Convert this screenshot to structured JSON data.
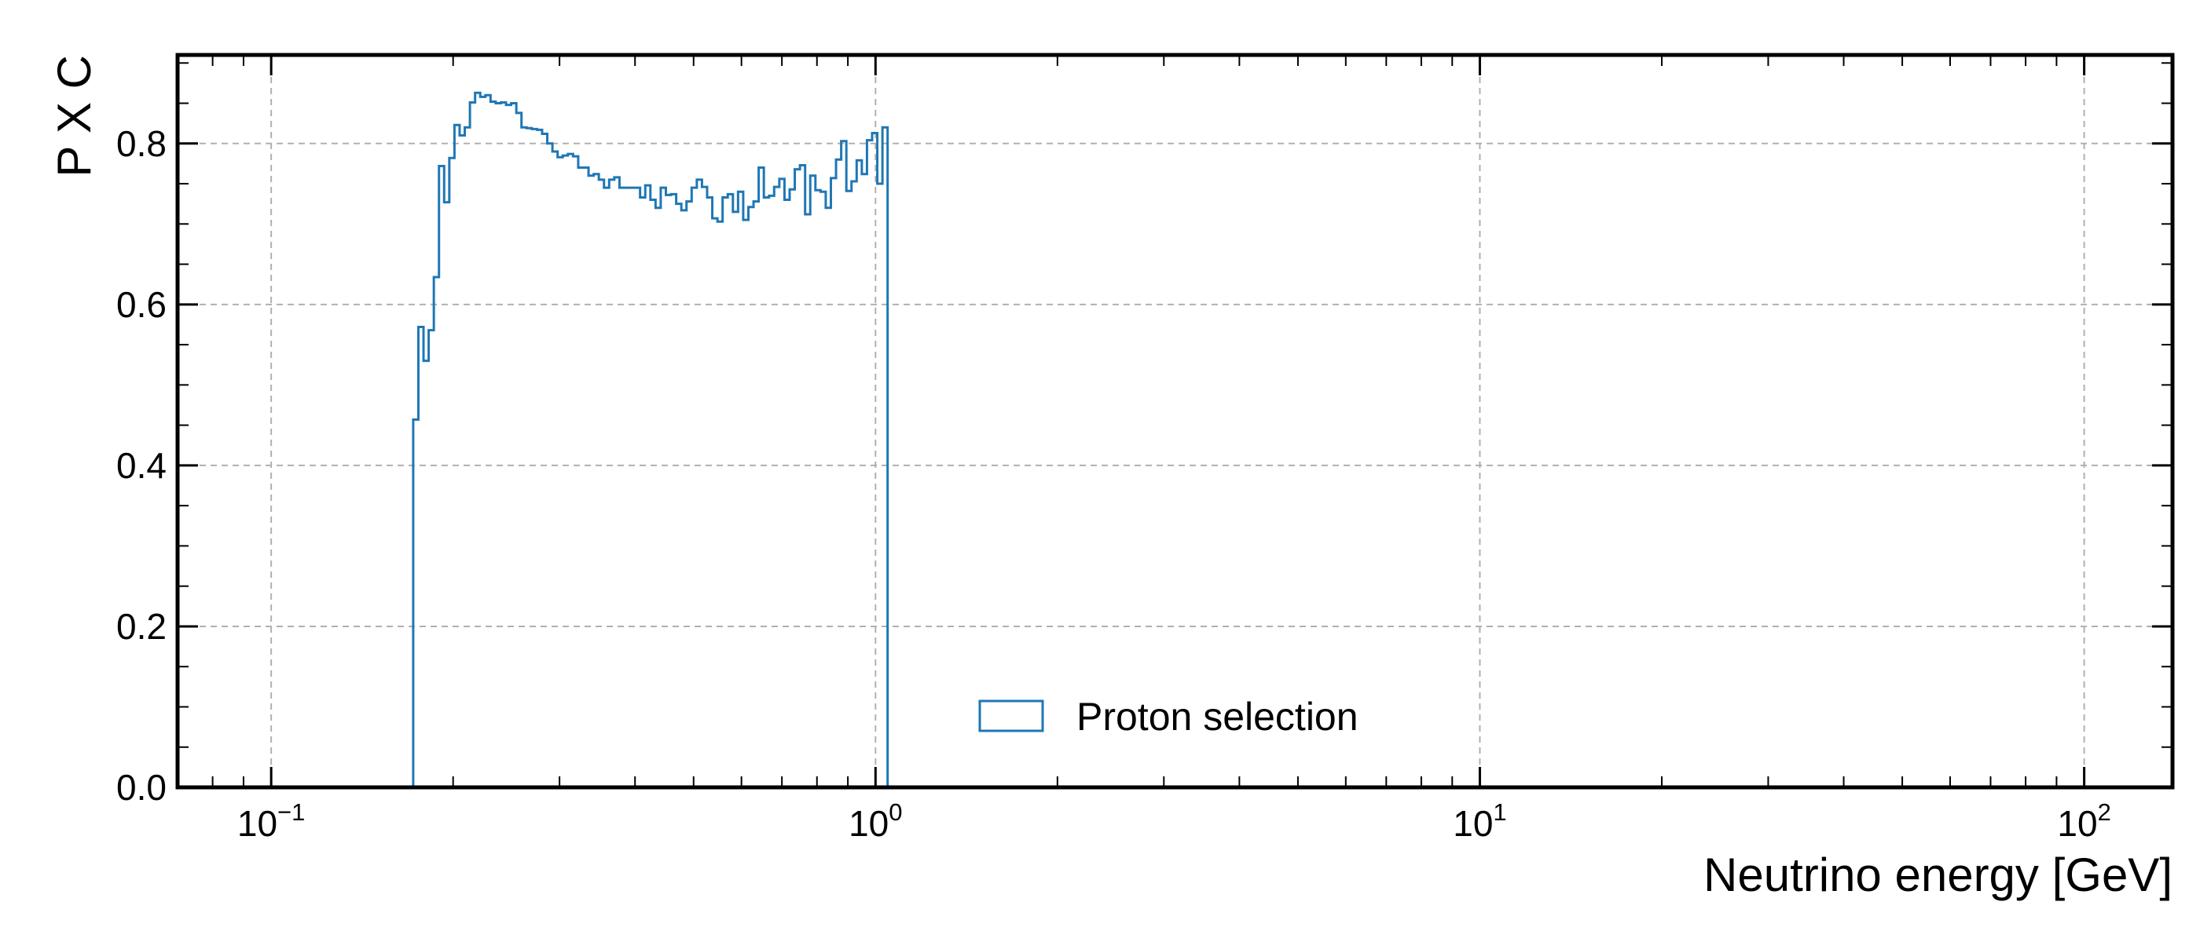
{
  "chart_data": {
    "type": "step",
    "ylabel": "P X C",
    "xlabel": "Neutrino energy [GeV]",
    "xscale": "log",
    "xlim": [
      0.07,
      140
    ],
    "ylim": [
      0.0,
      0.91
    ],
    "grid": true,
    "legend_position": "bottom-center",
    "series": [
      {
        "name": "Proton selection",
        "color": "#1f77b4",
        "values": [
          0.457,
          0.572,
          0.53,
          0.568,
          0.634,
          0.772,
          0.727,
          0.782,
          0.823,
          0.81,
          0.82,
          0.851,
          0.863,
          0.858,
          0.86,
          0.852,
          0.85,
          0.851,
          0.848,
          0.85,
          0.838,
          0.82,
          0.819,
          0.818,
          0.817,
          0.812,
          0.8,
          0.79,
          0.783,
          0.785,
          0.787,
          0.784,
          0.77,
          0.77,
          0.76,
          0.762,
          0.755,
          0.745,
          0.755,
          0.758,
          0.745,
          0.745,
          0.745,
          0.745,
          0.733,
          0.748,
          0.73,
          0.72,
          0.745,
          0.736,
          0.737,
          0.725,
          0.717,
          0.728,
          0.745,
          0.755,
          0.746,
          0.733,
          0.707,
          0.703,
          0.733,
          0.737,
          0.715,
          0.74,
          0.705,
          0.721,
          0.728,
          0.77,
          0.733,
          0.735,
          0.746,
          0.756,
          0.73,
          0.743,
          0.768,
          0.773,
          0.712,
          0.76,
          0.742,
          0.74,
          0.72,
          0.757,
          0.78,
          0.803,
          0.741,
          0.753,
          0.779,
          0.762,
          0.804,
          0.813,
          0.75,
          0.82
        ]
      }
    ],
    "bin_edges_log10": [
      -0.765,
      0.02
    ],
    "x_ticks": [
      {
        "base": "10",
        "exp": "−1",
        "log10": -1
      },
      {
        "base": "10",
        "exp": "0",
        "log10": 0
      },
      {
        "base": "10",
        "exp": "1",
        "log10": 1
      },
      {
        "base": "10",
        "exp": "2",
        "log10": 2
      }
    ],
    "y_ticks": [
      "0.0",
      "0.2",
      "0.4",
      "0.6",
      "0.8"
    ]
  }
}
